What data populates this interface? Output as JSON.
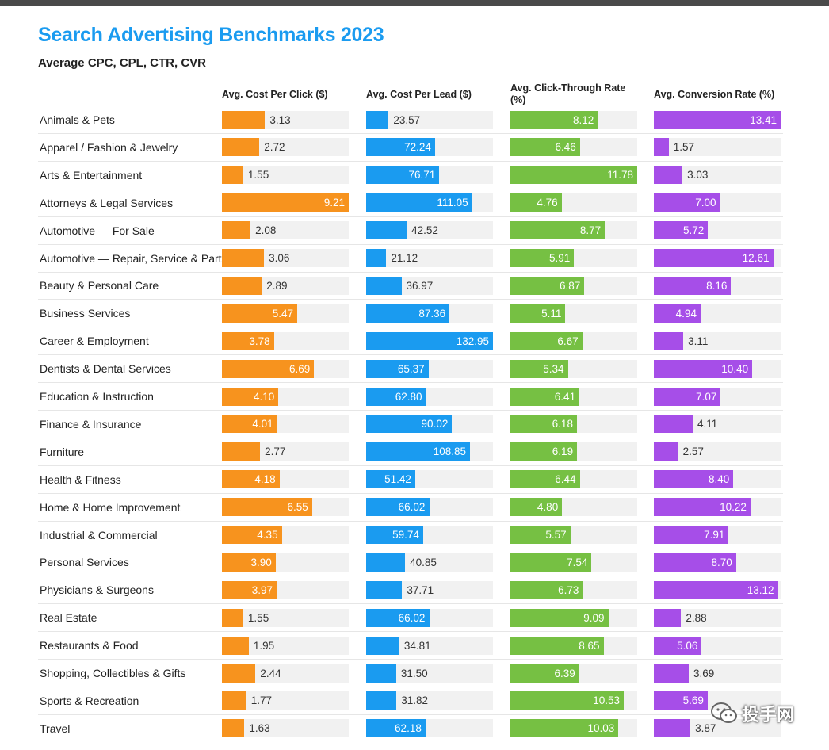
{
  "chart_data": {
    "type": "bar",
    "title": "Search Advertising Benchmarks 2023",
    "subtitle": "Average CPC, CPL, CTR, CVR",
    "categories": [
      "Animals & Pets",
      "Apparel / Fashion & Jewelry",
      "Arts & Entertainment",
      "Attorneys & Legal Services",
      "Automotive — For Sale",
      "Automotive — Repair, Service & Parts",
      "Beauty & Personal Care",
      "Business Services",
      "Career & Employment",
      "Dentists & Dental Services",
      "Education & Instruction",
      "Finance & Insurance",
      "Furniture",
      "Health & Fitness",
      "Home & Home Improvement",
      "Industrial & Commercial",
      "Personal Services",
      "Physicians & Surgeons",
      "Real Estate",
      "Restaurants & Food",
      "Shopping, Collectibles & Gifts",
      "Sports & Recreation",
      "Travel"
    ],
    "series": [
      {
        "name": "Avg. Cost Per Click ($)",
        "color": "#f7931e",
        "max": 9.21,
        "values": [
          "3.13",
          "2.72",
          "1.55",
          "9.21",
          "2.08",
          "3.06",
          "2.89",
          "5.47",
          "3.78",
          "6.69",
          "4.10",
          "4.01",
          "2.77",
          "4.18",
          "6.55",
          "4.35",
          "3.90",
          "3.97",
          "1.55",
          "1.95",
          "2.44",
          "1.77",
          "1.63"
        ]
      },
      {
        "name": "Avg. Cost Per Lead ($)",
        "color": "#1a9bf0",
        "max": 132.95,
        "values": [
          "23.57",
          "72.24",
          "76.71",
          "111.05",
          "42.52",
          "21.12",
          "36.97",
          "87.36",
          "132.95",
          "65.37",
          "62.80",
          "90.02",
          "108.85",
          "51.42",
          "66.02",
          "59.74",
          "40.85",
          "37.71",
          "66.02",
          "34.81",
          "31.50",
          "31.82",
          "62.18"
        ]
      },
      {
        "name": "Avg. Click-Through Rate (%)",
        "color": "#76c043",
        "max": 11.78,
        "values": [
          "8.12",
          "6.46",
          "11.78",
          "4.76",
          "8.77",
          "5.91",
          "6.87",
          "5.11",
          "6.67",
          "5.34",
          "6.41",
          "6.18",
          "6.19",
          "6.44",
          "4.80",
          "5.57",
          "7.54",
          "6.73",
          "9.09",
          "8.65",
          "6.39",
          "10.53",
          "10.03"
        ]
      },
      {
        "name": "Avg. Conversion Rate (%)",
        "color": "#a64ee8",
        "max": 13.41,
        "values": [
          "13.41",
          "1.57",
          "3.03",
          "7.00",
          "5.72",
          "12.61",
          "8.16",
          "4.94",
          "3.11",
          "10.40",
          "7.07",
          "4.11",
          "2.57",
          "8.40",
          "10.22",
          "7.91",
          "8.70",
          "13.12",
          "2.88",
          "5.06",
          "3.69",
          "5.69",
          "3.87"
        ]
      }
    ],
    "grid": false,
    "legend": "column headers"
  },
  "watermark": {
    "icon": "wechat-icon",
    "text": "投手网"
  }
}
